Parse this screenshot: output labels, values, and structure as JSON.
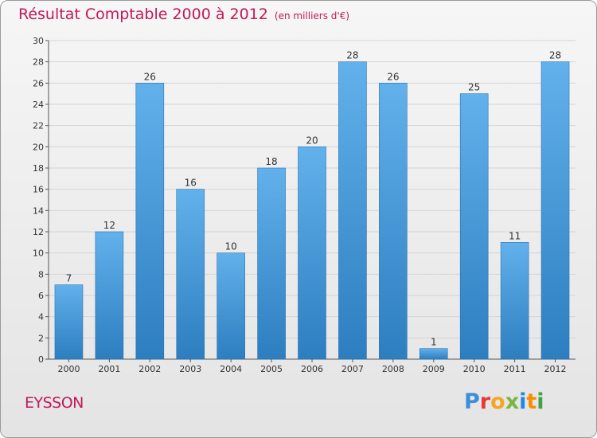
{
  "header": {
    "title": "Résultat Comptable 2000 à 2012",
    "subtitle": "(en milliers d'€)"
  },
  "footer": {
    "commune": "EYSSON",
    "logo": {
      "letters": [
        "P",
        "r",
        "o",
        "x",
        "i",
        "t",
        "i"
      ],
      "colors": [
        "#3b8fd8",
        "#e53935",
        "#f5a623",
        "#7cb342",
        "#1e88e5",
        "#fb8c00",
        "#43a047"
      ]
    }
  },
  "colors": {
    "bar_light": "#62b1ec",
    "bar_dark": "#2d7ec0",
    "title": "#c2185b",
    "grid": "#d4d4d4"
  },
  "chart_data": {
    "type": "bar",
    "title": "Résultat Comptable 2000 à 2012",
    "xlabel": "",
    "ylabel": "",
    "categories": [
      "2000",
      "2001",
      "2002",
      "2003",
      "2004",
      "2005",
      "2006",
      "2007",
      "2008",
      "2009",
      "2010",
      "2011",
      "2012"
    ],
    "values": [
      7,
      12,
      26,
      16,
      10,
      18,
      20,
      28,
      26,
      1,
      25,
      11,
      28
    ],
    "ylim": [
      0,
      30
    ],
    "yticks": [
      0,
      2,
      4,
      6,
      8,
      10,
      12,
      14,
      16,
      18,
      20,
      22,
      24,
      26,
      28,
      30
    ],
    "grid": true
  }
}
